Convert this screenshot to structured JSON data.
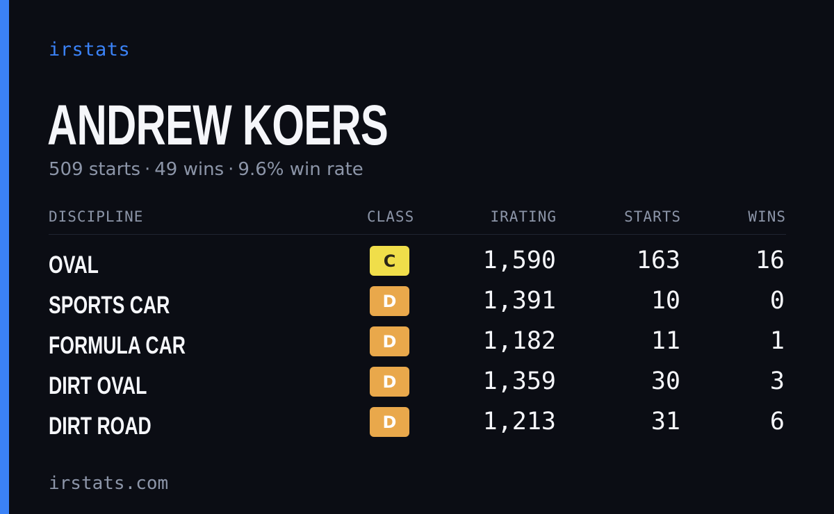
{
  "brand": "irstats",
  "driver": {
    "name": "ANDREW KOERS",
    "starts_text": "509 starts",
    "wins_text": "49 wins",
    "win_rate_text": "9.6% win rate",
    "separator": "·"
  },
  "table": {
    "headers": {
      "discipline": "DISCIPLINE",
      "class": "CLASS",
      "irating": "IRATING",
      "starts": "STARTS",
      "wins": "WINS"
    },
    "rows": [
      {
        "discipline": "OVAL",
        "class": "C",
        "class_color": "#f0de4a",
        "class_text_color": "#2a2618",
        "irating": "1,590",
        "starts": "163",
        "wins": "16"
      },
      {
        "discipline": "SPORTS CAR",
        "class": "D",
        "class_color": "#e9a84b",
        "class_text_color": "#ffffff",
        "irating": "1,391",
        "starts": "10",
        "wins": "0"
      },
      {
        "discipline": "FORMULA CAR",
        "class": "D",
        "class_color": "#e9a84b",
        "class_text_color": "#ffffff",
        "irating": "1,182",
        "starts": "11",
        "wins": "1"
      },
      {
        "discipline": "DIRT OVAL",
        "class": "D",
        "class_color": "#e9a84b",
        "class_text_color": "#ffffff",
        "irating": "1,359",
        "starts": "30",
        "wins": "3"
      },
      {
        "discipline": "DIRT ROAD",
        "class": "D",
        "class_color": "#e9a84b",
        "class_text_color": "#ffffff",
        "irating": "1,213",
        "starts": "31",
        "wins": "6"
      }
    ]
  },
  "footer": {
    "url": "irstats.com"
  },
  "colors": {
    "accent": "#3b82f6",
    "background": "#0b0d14",
    "muted_text": "#8c95a8",
    "primary_text": "#f5f6fa"
  }
}
